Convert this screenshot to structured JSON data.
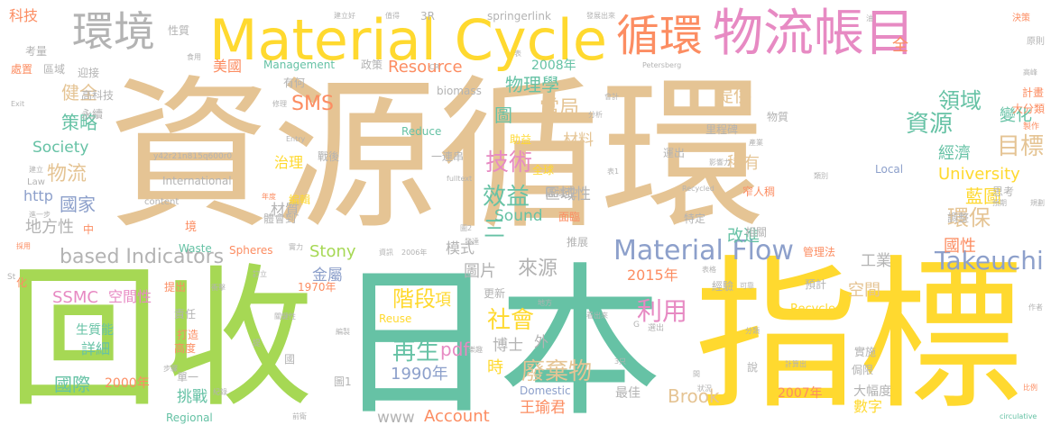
{
  "colors": {
    "tan": "#e5c494",
    "green": "#a6d854",
    "teal": "#66c2a5",
    "yellow": "#ffd92f",
    "orange": "#fc8d62",
    "pink": "#e78ac3",
    "blue": "#8da0cb",
    "gray": "#b3b3b3"
  },
  "words": [
    {
      "text": "資源循環",
      "color": "tan"
    },
    {
      "text": "回收",
      "color": "green"
    },
    {
      "text": "日本",
      "color": "teal"
    },
    {
      "text": "指標",
      "color": "yellow"
    },
    {
      "text": "Material Cycle",
      "color": "yellow"
    },
    {
      "text": "物流",
      "color": "pink"
    },
    {
      "text": "帳目",
      "color": "pink"
    },
    {
      "text": "循環",
      "color": "orange"
    },
    {
      "text": "環境",
      "color": "gray"
    },
    {
      "text": "Material Flow",
      "color": "blue"
    },
    {
      "text": "Takeuchi",
      "color": "blue"
    },
    {
      "text": "based Indicators",
      "color": "gray"
    },
    {
      "text": "Resource",
      "color": "orange"
    },
    {
      "text": "SMS",
      "color": "orange"
    },
    {
      "text": "技術",
      "color": "pink"
    },
    {
      "text": "效益",
      "color": "teal"
    },
    {
      "text": "資源",
      "color": "teal"
    },
    {
      "text": "目標",
      "color": "tan"
    },
    {
      "text": "領域",
      "color": "teal"
    },
    {
      "text": "環保",
      "color": "tan"
    },
    {
      "text": "利用",
      "color": "pink"
    },
    {
      "text": "社會",
      "color": "yellow"
    },
    {
      "text": "廢棄物",
      "color": "tan"
    },
    {
      "text": "Account",
      "color": "orange"
    },
    {
      "text": "王瑜君",
      "color": "orange"
    },
    {
      "text": "Brook",
      "color": "tan"
    },
    {
      "text": "階段",
      "color": "yellow"
    },
    {
      "text": "再生",
      "color": "teal"
    },
    {
      "text": "pdf",
      "color": "pink"
    },
    {
      "text": "1990年",
      "color": "blue"
    },
    {
      "text": "www",
      "color": "gray"
    },
    {
      "text": "國家",
      "color": "blue"
    },
    {
      "text": "健全",
      "color": "tan"
    },
    {
      "text": "策略",
      "color": "teal"
    },
    {
      "text": "Society",
      "color": "teal"
    },
    {
      "text": "物流",
      "color": "tan"
    },
    {
      "text": "http",
      "color": "blue"
    },
    {
      "text": "地方性",
      "color": "gray"
    },
    {
      "text": "國際",
      "color": "teal"
    },
    {
      "text": "2000年",
      "color": "orange"
    },
    {
      "text": "挑戰",
      "color": "teal"
    },
    {
      "text": "SSMC",
      "color": "pink"
    },
    {
      "text": "空間性",
      "color": "pink"
    },
    {
      "text": "詳細",
      "color": "teal"
    },
    {
      "text": "生質能",
      "color": "teal"
    },
    {
      "text": "科技",
      "color": "orange"
    },
    {
      "text": "美國",
      "color": "orange"
    },
    {
      "text": "2008年",
      "color": "teal"
    },
    {
      "text": "物理學",
      "color": "teal"
    },
    {
      "text": "當局",
      "color": "tan"
    },
    {
      "text": "提供",
      "color": "tan"
    },
    {
      "text": "變化",
      "color": "teal"
    },
    {
      "text": "經濟",
      "color": "teal"
    },
    {
      "text": "University",
      "color": "yellow"
    },
    {
      "text": "稀有",
      "color": "tan"
    },
    {
      "text": "藍圖",
      "color": "yellow"
    },
    {
      "text": "國性",
      "color": "orange"
    },
    {
      "text": "2015年",
      "color": "orange"
    },
    {
      "text": "空間",
      "color": "tan"
    },
    {
      "text": "工業",
      "color": "gray"
    },
    {
      "text": "Stony",
      "color": "green"
    },
    {
      "text": "金屬",
      "color": "blue"
    },
    {
      "text": "圖片",
      "color": "gray"
    },
    {
      "text": "來源",
      "color": "gray"
    },
    {
      "text": "改進",
      "color": "teal"
    },
    {
      "text": "Sound",
      "color": "teal"
    },
    {
      "text": "區域性",
      "color": "gray"
    },
    {
      "text": "材料",
      "color": "tan"
    },
    {
      "text": "治理",
      "color": "yellow"
    },
    {
      "text": "材質",
      "color": "gray"
    },
    {
      "text": "模式",
      "color": "gray"
    },
    {
      "text": "博士",
      "color": "gray"
    },
    {
      "text": "數字",
      "color": "yellow"
    },
    {
      "text": "2007年",
      "color": "orange"
    },
    {
      "text": "大幅度",
      "color": "gray"
    },
    {
      "text": "最佳",
      "color": "gray"
    },
    {
      "text": "Domestic",
      "color": "blue"
    },
    {
      "text": "Recycle",
      "color": "yellow"
    },
    {
      "text": "Reduce",
      "color": "teal"
    },
    {
      "text": "Reuse",
      "color": "yellow"
    },
    {
      "text": "Management",
      "color": "teal"
    },
    {
      "text": "springerlink",
      "color": "gray"
    },
    {
      "text": "3R",
      "color": "gray"
    },
    {
      "text": "biomass",
      "color": "gray"
    },
    {
      "text": "Waste",
      "color": "teal"
    },
    {
      "text": "Spheres",
      "color": "orange"
    },
    {
      "text": "International",
      "color": "gray"
    },
    {
      "text": "Regional",
      "color": "teal"
    },
    {
      "text": "Local",
      "color": "blue"
    },
    {
      "text": "Recycled",
      "color": "gray"
    },
    {
      "text": "content",
      "color": "gray"
    },
    {
      "text": "fulltext",
      "color": "gray"
    },
    {
      "text": "Exit",
      "color": "gray"
    },
    {
      "text": "Entry",
      "color": "gray"
    },
    {
      "text": "Law",
      "color": "gray"
    },
    {
      "text": "Petersberg",
      "color": "gray"
    },
    {
      "text": "circulative",
      "color": "teal"
    },
    {
      "text": "y42r21n815q600r0",
      "color": "gray"
    },
    {
      "text": "政策",
      "color": "gray"
    },
    {
      "text": "有何",
      "color": "gray"
    },
    {
      "text": "永續",
      "color": "gray"
    },
    {
      "text": "高科技",
      "color": "gray"
    },
    {
      "text": "迎接",
      "color": "gray"
    },
    {
      "text": "考量",
      "color": "gray"
    },
    {
      "text": "區域",
      "color": "gray"
    },
    {
      "text": "處置",
      "color": "orange"
    },
    {
      "text": "性質",
      "color": "gray"
    },
    {
      "text": "食用",
      "color": "gray"
    },
    {
      "text": "助益",
      "color": "yellow"
    },
    {
      "text": "一連串",
      "color": "gray"
    },
    {
      "text": "全球",
      "color": "yellow"
    },
    {
      "text": "區域性",
      "color": "gray"
    },
    {
      "text": "戰後",
      "color": "gray"
    },
    {
      "text": "編輯",
      "color": "yellow"
    },
    {
      "text": "體會到",
      "color": "gray"
    },
    {
      "text": "面臨",
      "color": "orange"
    },
    {
      "text": "推展",
      "color": "gray"
    },
    {
      "text": "預計",
      "color": "gray"
    },
    {
      "text": "管理法",
      "color": "orange"
    },
    {
      "text": "經驗",
      "color": "gray"
    },
    {
      "text": "實施",
      "color": "gray"
    },
    {
      "text": "侷限",
      "color": "gray"
    },
    {
      "text": "更新",
      "color": "gray"
    },
    {
      "text": "外",
      "color": "gray"
    },
    {
      "text": "時",
      "color": "yellow"
    },
    {
      "text": "責任",
      "color": "gray"
    },
    {
      "text": "打造",
      "color": "orange"
    },
    {
      "text": "高度",
      "color": "orange"
    },
    {
      "text": "單一",
      "color": "gray"
    },
    {
      "text": "提出",
      "color": "orange"
    },
    {
      "text": "1970年",
      "color": "orange"
    },
    {
      "text": "運出",
      "color": "gray"
    },
    {
      "text": "里程碑",
      "color": "gray"
    },
    {
      "text": "物質",
      "color": "gray"
    },
    {
      "text": "特定",
      "color": "gray"
    },
    {
      "text": "窄人稠",
      "color": "orange"
    },
    {
      "text": "思考",
      "color": "gray"
    },
    {
      "text": "調整",
      "color": "gray"
    },
    {
      "text": "計畫",
      "color": "orange"
    },
    {
      "text": "大分類",
      "color": "orange"
    },
    {
      "text": "原則",
      "color": "gray"
    },
    {
      "text": "建立好",
      "color": "gray"
    },
    {
      "text": "值得",
      "color": "gray"
    },
    {
      "text": "發展出來",
      "color": "gray"
    },
    {
      "text": "決策",
      "color": "orange"
    },
    {
      "text": "油",
      "color": "gray"
    },
    {
      "text": "全",
      "color": "orange"
    },
    {
      "text": "中",
      "color": "orange"
    },
    {
      "text": "境",
      "color": "orange"
    },
    {
      "text": "三",
      "color": "teal"
    },
    {
      "text": "項",
      "color": "yellow"
    },
    {
      "text": "說",
      "color": "gray"
    },
    {
      "text": "化",
      "color": "orange"
    },
    {
      "text": "圖",
      "color": "teal"
    },
    {
      "text": "CR",
      "color": "gray"
    },
    {
      "text": "表",
      "color": "gray"
    },
    {
      "text": "2006年",
      "color": "gray"
    },
    {
      "text": "資訊",
      "color": "gray"
    },
    {
      "text": "發達",
      "color": "gray"
    },
    {
      "text": "計算出",
      "color": "gray"
    },
    {
      "text": "比例",
      "color": "orange"
    },
    {
      "text": "作者",
      "color": "gray"
    },
    {
      "text": "St",
      "color": "gray"
    },
    {
      "text": "G",
      "color": "gray"
    },
    {
      "text": "選出",
      "color": "gray"
    },
    {
      "text": "看出來",
      "color": "gray"
    },
    {
      "text": "分類",
      "color": "gray"
    },
    {
      "text": "影響力",
      "color": "gray"
    },
    {
      "text": "相關",
      "color": "gray"
    },
    {
      "text": "預期",
      "color": "gray"
    },
    {
      "text": "規劃",
      "color": "gray"
    },
    {
      "text": "製作",
      "color": "orange"
    },
    {
      "text": "高峰",
      "color": "gray"
    },
    {
      "text": "產業",
      "color": "gray"
    },
    {
      "text": "類別",
      "color": "gray"
    },
    {
      "text": "採用",
      "color": "orange"
    },
    {
      "text": "進一步",
      "color": "gray"
    },
    {
      "text": "建立",
      "color": "gray"
    },
    {
      "text": "年度",
      "color": "orange"
    },
    {
      "text": "衝擊",
      "color": "gray"
    },
    {
      "text": "關鍵性",
      "color": "gray"
    },
    {
      "text": "步驟",
      "color": "gray"
    },
    {
      "text": "紀錄",
      "color": "gray"
    },
    {
      "text": "編製",
      "color": "gray"
    },
    {
      "text": "圖1",
      "color": "gray"
    },
    {
      "text": "表1",
      "color": "gray"
    },
    {
      "text": "圖2",
      "color": "gray"
    },
    {
      "text": "表格",
      "color": "gray"
    },
    {
      "text": "可靠",
      "color": "gray"
    },
    {
      "text": "前衛",
      "color": "gray"
    },
    {
      "text": "間",
      "color": "gray"
    },
    {
      "text": "3只",
      "color": "gray"
    },
    {
      "text": "狀況",
      "color": "gray"
    },
    {
      "text": "地方",
      "color": "gray"
    },
    {
      "text": "會計",
      "color": "gray"
    },
    {
      "text": "修理",
      "color": "gray"
    },
    {
      "text": "分析",
      "color": "gray"
    },
    {
      "text": "提",
      "color": "gray"
    },
    {
      "text": "國",
      "color": "gray"
    },
    {
      "text": "訂立",
      "color": "gray"
    },
    {
      "text": "實力",
      "color": "gray"
    },
    {
      "text": "樂趣",
      "color": "gray"
    }
  ]
}
